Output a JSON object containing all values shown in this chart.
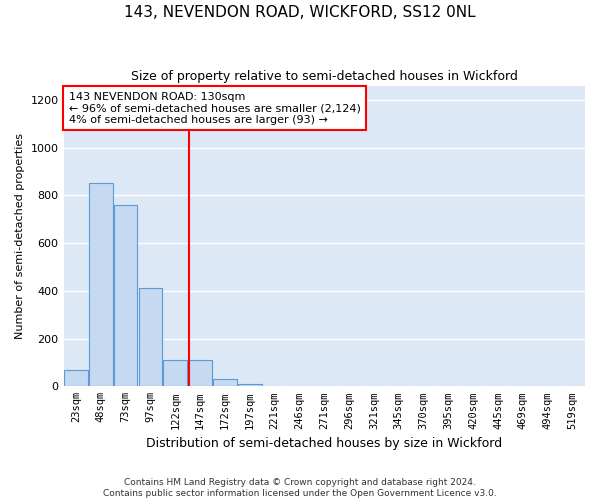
{
  "title": "143, NEVENDON ROAD, WICKFORD, SS12 0NL",
  "subtitle": "Size of property relative to semi-detached houses in Wickford",
  "xlabel": "Distribution of semi-detached houses by size in Wickford",
  "ylabel": "Number of semi-detached properties",
  "footer1": "Contains HM Land Registry data © Crown copyright and database right 2024.",
  "footer2": "Contains public sector information licensed under the Open Government Licence v3.0.",
  "categories": [
    "23sqm",
    "48sqm",
    "73sqm",
    "97sqm",
    "122sqm",
    "147sqm",
    "172sqm",
    "197sqm",
    "221sqm",
    "246sqm",
    "271sqm",
    "296sqm",
    "321sqm",
    "345sqm",
    "370sqm",
    "395sqm",
    "420sqm",
    "445sqm",
    "469sqm",
    "494sqm",
    "519sqm"
  ],
  "values": [
    70,
    850,
    760,
    410,
    110,
    110,
    30,
    10,
    0,
    0,
    0,
    0,
    0,
    0,
    0,
    0,
    0,
    0,
    0,
    0,
    0
  ],
  "bar_color": "#c5d9f0",
  "bar_edge_color": "#5b9bd5",
  "vline_x": 4.55,
  "vline_color": "red",
  "annotation_line1": "143 NEVENDON ROAD: 130sqm",
  "annotation_line2": "← 96% of semi-detached houses are smaller (2,124)",
  "annotation_line3": "4% of semi-detached houses are larger (93) →",
  "annotation_box_color": "white",
  "annotation_box_edge": "red",
  "ylim": [
    0,
    1260
  ],
  "yticks": [
    0,
    200,
    400,
    600,
    800,
    1000,
    1200
  ],
  "bg_color": "#dce8f5",
  "grid_color": "white",
  "title_fontsize": 11,
  "subtitle_fontsize": 9,
  "xlabel_fontsize": 9,
  "ylabel_fontsize": 8
}
